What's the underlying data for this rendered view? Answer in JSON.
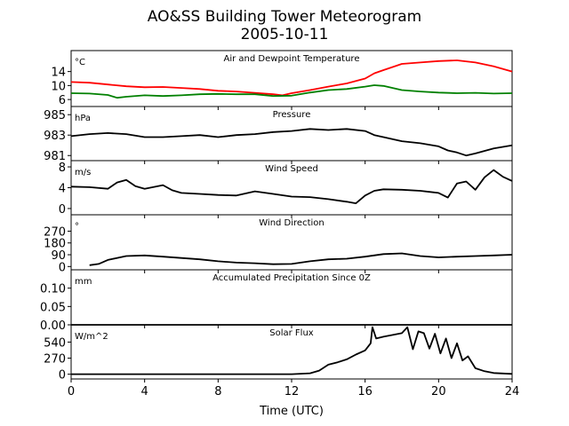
{
  "figure": {
    "title_line1": "AO&SS Building Tower Meteorogram",
    "title_line2": "2005-10-11"
  },
  "chart_data": {
    "type": "line",
    "xlabel": "Time (UTC)",
    "xlim": [
      0,
      24
    ],
    "xticks": [
      0,
      4,
      8,
      12,
      16,
      20,
      24
    ],
    "panels": [
      {
        "key": "temp",
        "title": "Air and Dewpoint Temperature",
        "unit": "°C",
        "ylim": [
          4,
          20
        ],
        "yticks": [
          6,
          10,
          14
        ],
        "series": [
          {
            "color": "#ff0000",
            "x": [
              0,
              1,
              2,
              3,
              4,
              5,
              6,
              7,
              8,
              9,
              10,
              11,
              11.5,
              12,
              13,
              14,
              15,
              16,
              16.5,
              17,
              17.5,
              18,
              19,
              20,
              21,
              22,
              23,
              24
            ],
            "y": [
              11.0,
              10.8,
              10.3,
              9.8,
              9.5,
              9.6,
              9.3,
              9.0,
              8.5,
              8.3,
              7.9,
              7.5,
              7.2,
              7.8,
              8.7,
              9.7,
              10.6,
              12.0,
              13.5,
              14.4,
              15.3,
              16.2,
              16.6,
              17.0,
              17.2,
              16.6,
              15.5,
              14.0
            ]
          },
          {
            "color": "#008000",
            "x": [
              0,
              1,
              2,
              2.5,
              3,
              4,
              5,
              6,
              7,
              8,
              9,
              10,
              11,
              12,
              13,
              14,
              15,
              16,
              16.5,
              17,
              18,
              19,
              20,
              21,
              22,
              23,
              24
            ],
            "y": [
              7.8,
              7.7,
              7.3,
              6.5,
              6.8,
              7.2,
              7.0,
              7.2,
              7.5,
              7.6,
              7.5,
              7.5,
              7.0,
              7.1,
              8.0,
              8.7,
              9.0,
              9.7,
              10.1,
              9.9,
              8.7,
              8.3,
              8.0,
              7.8,
              7.9,
              7.7,
              7.8
            ]
          }
        ]
      },
      {
        "key": "pressure",
        "title": "Pressure",
        "unit": "hPa",
        "ylim": [
          980.5,
          985.8
        ],
        "yticks": [
          981,
          983,
          985
        ],
        "yticklabels": [
          "981",
          "983",
          "985"
        ],
        "series": [
          {
            "color": "#000000",
            "x": [
              0,
              1,
              2,
              3,
              4,
              5,
              6,
              7,
              8,
              9,
              10,
              11,
              12,
              13,
              14,
              15,
              16,
              16.5,
              17,
              18,
              19,
              20,
              20.5,
              21,
              21.5,
              22,
              23,
              24
            ],
            "y": [
              982.9,
              983.1,
              983.2,
              983.1,
              982.8,
              982.8,
              982.9,
              983.0,
              982.8,
              983.0,
              983.1,
              983.3,
              983.4,
              983.6,
              983.5,
              983.6,
              983.4,
              983.0,
              982.8,
              982.4,
              982.2,
              981.9,
              981.5,
              981.3,
              981.0,
              981.2,
              981.7,
              982.0
            ]
          }
        ]
      },
      {
        "key": "wind_speed",
        "title": "Wind Speed",
        "unit": "m/s",
        "ylim": [
          -1.2,
          9.2
        ],
        "yticks": [
          0,
          4,
          8
        ],
        "series": [
          {
            "color": "#000000",
            "x": [
              0,
              1,
              2,
              2.5,
              3,
              3.5,
              4,
              5,
              5.5,
              6,
              7,
              8,
              9,
              10,
              11,
              12,
              13,
              14,
              15,
              15.5,
              16,
              16.5,
              17,
              18,
              19,
              19.5,
              20,
              20.5,
              21,
              21.5,
              22,
              22.5,
              23,
              23.5,
              24
            ],
            "y": [
              4.2,
              4.1,
              3.8,
              5.0,
              5.5,
              4.3,
              3.8,
              4.5,
              3.5,
              3.0,
              2.8,
              2.6,
              2.5,
              3.3,
              2.8,
              2.3,
              2.2,
              1.8,
              1.3,
              1.0,
              2.5,
              3.4,
              3.7,
              3.6,
              3.4,
              3.2,
              3.0,
              2.1,
              4.8,
              5.2,
              3.6,
              6.0,
              7.4,
              6.1,
              5.3
            ]
          }
        ]
      },
      {
        "key": "wind_dir",
        "title": "Wind Direction",
        "unit": "°",
        "ylim": [
          -25,
          395
        ],
        "yticks": [
          0,
          90,
          180,
          270
        ],
        "series": [
          {
            "color": "#000000",
            "x": [
              1.0,
              1.5,
              2,
              3,
              4,
              5,
              6,
              7,
              8,
              9,
              10,
              11,
              12,
              13,
              14,
              15,
              16,
              17,
              18,
              19,
              20,
              21,
              22,
              23,
              24
            ],
            "y": [
              10,
              20,
              50,
              80,
              85,
              75,
              65,
              55,
              40,
              30,
              25,
              18,
              20,
              40,
              55,
              60,
              75,
              95,
              100,
              80,
              70,
              75,
              80,
              85,
              90
            ]
          }
        ]
      },
      {
        "key": "precip",
        "title": "Accumulated Precipitation Since 0Z",
        "unit": "mm",
        "ylim": [
          0,
          0.15
        ],
        "yticks": [
          0,
          0.05,
          0.1
        ],
        "yticklabels": [
          "0.00",
          "0.05",
          "0.10"
        ],
        "series": [
          {
            "color": "#000000",
            "x": [
              0,
              24
            ],
            "y": [
              0,
              0
            ]
          }
        ]
      },
      {
        "key": "solar",
        "title": "Solar Flux",
        "unit": "W/m^2",
        "ylim": [
          -80,
          830
        ],
        "yticks": [
          0,
          270,
          540
        ],
        "series": [
          {
            "color": "#000000",
            "x": [
              0,
              10,
              12,
              13,
              13.5,
              14,
              14.5,
              15,
              15.5,
              16,
              16.3,
              16.4,
              16.6,
              17,
              17.5,
              18,
              18.3,
              18.6,
              18.9,
              19.2,
              19.5,
              19.8,
              20.1,
              20.4,
              20.7,
              21,
              21.3,
              21.6,
              22,
              22.5,
              23,
              24
            ],
            "y": [
              0,
              0,
              0,
              15,
              60,
              160,
              200,
              250,
              330,
              400,
              520,
              790,
              600,
              630,
              660,
              690,
              790,
              420,
              720,
              690,
              430,
              680,
              350,
              600,
              270,
              520,
              230,
              300,
              100,
              50,
              20,
              5
            ]
          }
        ]
      }
    ]
  }
}
